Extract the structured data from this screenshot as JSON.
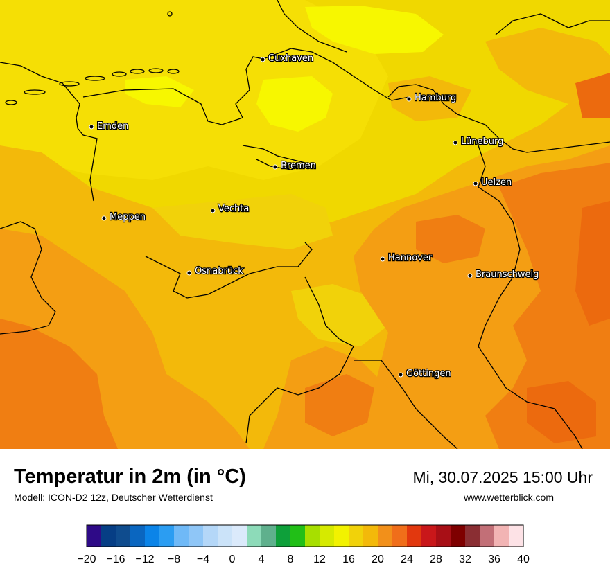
{
  "map": {
    "cities": [
      {
        "name": "Cuxhaven"
      },
      {
        "name": "Hamburg"
      },
      {
        "name": "Emden"
      },
      {
        "name": "Lüneburg"
      },
      {
        "name": "Bremen"
      },
      {
        "name": "Uelzen"
      },
      {
        "name": "Vechta"
      },
      {
        "name": "Meppen"
      },
      {
        "name": "Hannover"
      },
      {
        "name": "Osnabrück"
      },
      {
        "name": "Braunschweig"
      },
      {
        "name": "Göttingen"
      }
    ],
    "colors": {
      "t16": "#f0d800",
      "t18": "#f5df05",
      "t20": "#f3b90a",
      "t22": "#f49e13",
      "t24": "#f07e12",
      "t26": "#ec6a0e",
      "yellow_bright": "#f7f700"
    }
  },
  "footer": {
    "title": "Temperatur in 2m (in °C)",
    "model": "Modell: ICON-D2 12z, Deutscher Wetterdienst",
    "datetime": "Mi, 30.07.2025 15:00 Uhr",
    "source": "www.wetterblick.com"
  },
  "colorbar": {
    "min": -20,
    "max": 40,
    "step": 2,
    "ticks": [
      "−20",
      "−16",
      "−12",
      "−8",
      "−4",
      "0",
      "4",
      "8",
      "12",
      "16",
      "20",
      "24",
      "28",
      "32",
      "36",
      "40"
    ],
    "colors": [
      "#2e0a87",
      "#063e85",
      "#0f4c8e",
      "#0a66c0",
      "#0b84e8",
      "#2b9df2",
      "#6fb9f7",
      "#8fc6f7",
      "#b4d7f8",
      "#cbe3f9",
      "#dbeafb",
      "#8ddbb9",
      "#5fb08d",
      "#0ea03a",
      "#21bf17",
      "#a7df00",
      "#d6ea00",
      "#f2f200",
      "#f1d20a",
      "#f3b90a",
      "#f2901a",
      "#f06e1a",
      "#e2380e",
      "#c9171a",
      "#a80f16",
      "#7e0000",
      "#8a2e33",
      "#c26f77",
      "#f2b4b4",
      "#fde2e6"
    ]
  }
}
